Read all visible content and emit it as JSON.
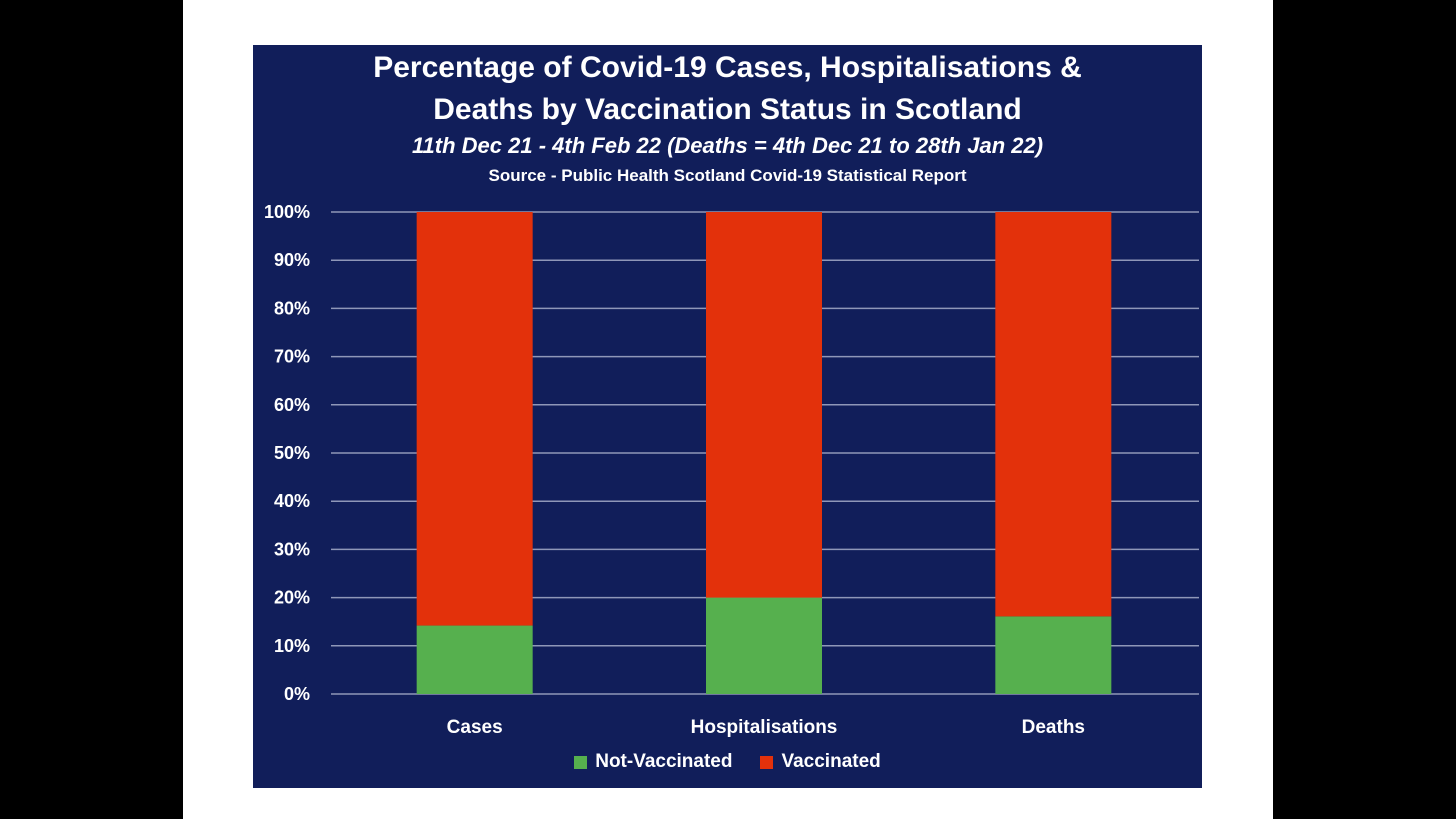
{
  "chart_data": {
    "type": "bar",
    "stacked": true,
    "title_line1": "Percentage of Covid-19 Cases, Hospitalisations &",
    "title_line2": "Deaths by Vaccination Status in Scotland",
    "subtitle": "11th Dec 21 - 4th Feb 22 (Deaths = 4th Dec 21 to 28th Jan 22)",
    "source": "Source - Public Health Scotland Covid-19 Statistical Report",
    "categories": [
      "Cases",
      "Hospitalisations",
      "Deaths"
    ],
    "series": [
      {
        "name": "Not-Vaccinated",
        "color": "#56b04e",
        "values": [
          14.2,
          20.0,
          16.1
        ]
      },
      {
        "name": "Vaccinated",
        "color": "#e3310b",
        "values": [
          85.8,
          80.0,
          83.9
        ]
      }
    ],
    "ylim": [
      0,
      100
    ],
    "yticks": [
      "0%",
      "10%",
      "20%",
      "30%",
      "40%",
      "50%",
      "60%",
      "70%",
      "80%",
      "90%",
      "100%"
    ],
    "xlabel": "",
    "ylabel": "",
    "grid": true,
    "legend": "bottom"
  }
}
